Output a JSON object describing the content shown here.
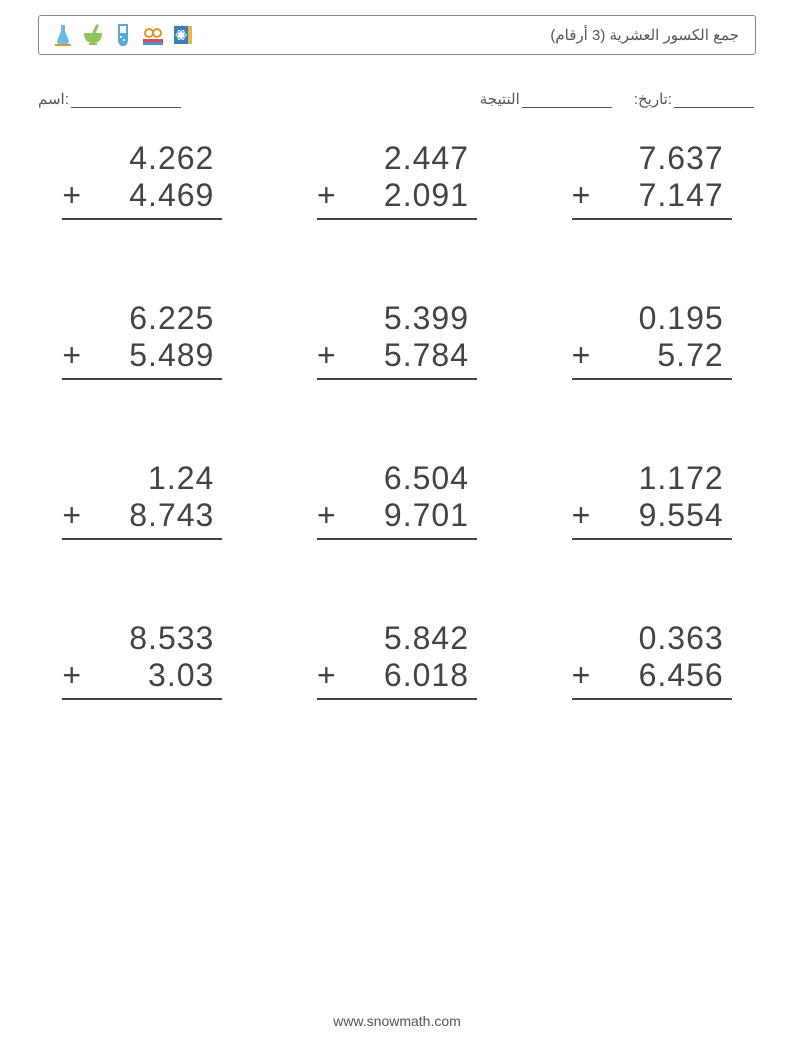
{
  "title": "(جمع الكسور العشرية (3 أرقام",
  "meta": {
    "name_label": "اسم:",
    "score_label": "النتيجة",
    "date_label": ":تاريخ:",
    "underline_name_w": 110,
    "underline_score_w": 90,
    "underline_date_w": 80
  },
  "problems": [
    {
      "a": "4.262",
      "b": "4.469"
    },
    {
      "a": "2.447",
      "b": "2.091"
    },
    {
      "a": "7.637",
      "b": "7.147"
    },
    {
      "a": "6.225",
      "b": "5.489"
    },
    {
      "a": "5.399",
      "b": "5.784"
    },
    {
      "a": "0.195",
      "b": "5.72"
    },
    {
      "a": "1.24",
      "b": "8.743"
    },
    {
      "a": "6.504",
      "b": "9.701"
    },
    {
      "a": "1.172",
      "b": "9.554"
    },
    {
      "a": "8.533",
      "b": "3.03"
    },
    {
      "a": "5.842",
      "b": "6.018"
    },
    {
      "a": "0.363",
      "b": "6.456"
    }
  ],
  "footer": "www.snowmath.com",
  "colors": {
    "text": "#444",
    "border": "#888",
    "bg": "#ffffff"
  }
}
